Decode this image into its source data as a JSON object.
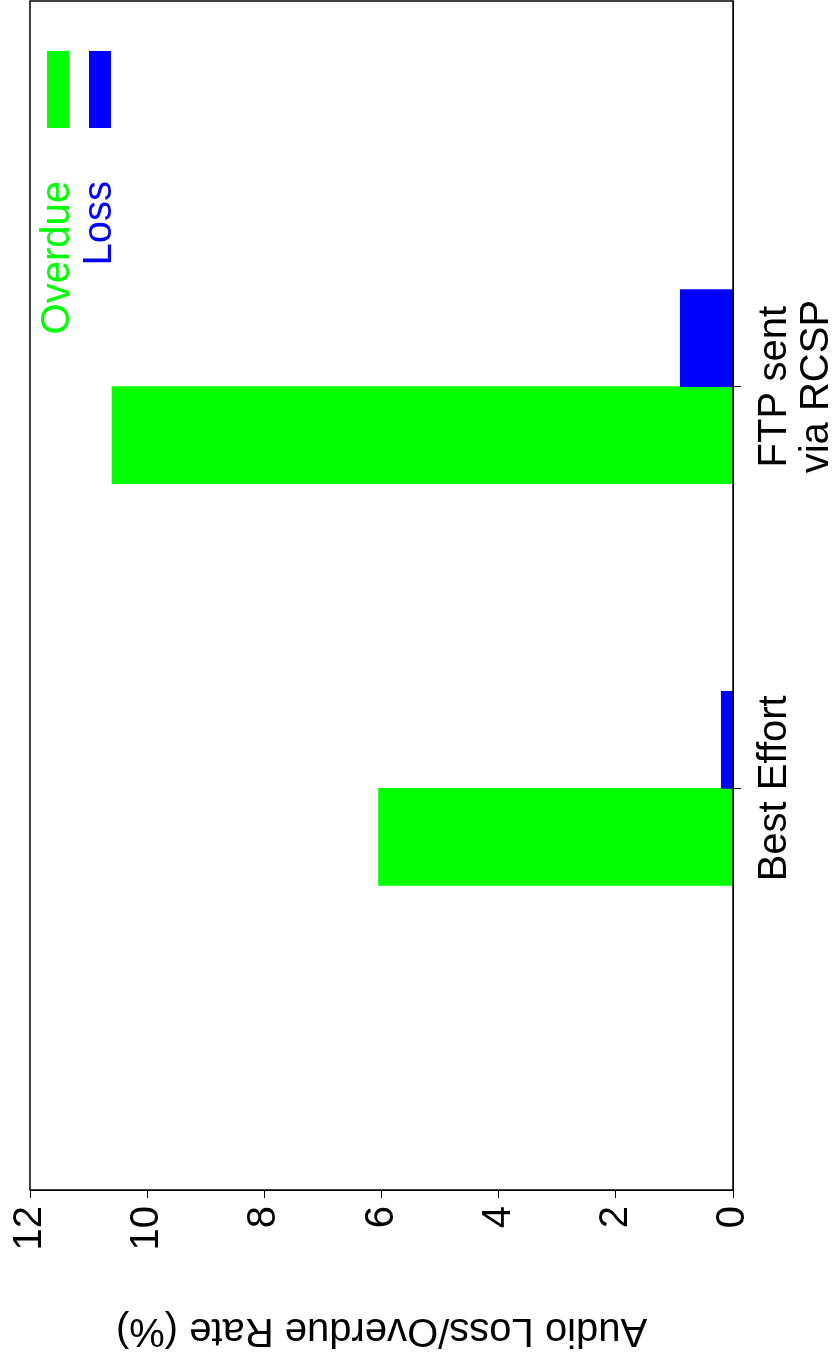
{
  "chart_data": {
    "type": "bar",
    "orientation": "horizontal",
    "xlabel": "Audio Loss/Overdue Rate (%)",
    "categories": [
      "FTP sent\nvia RCSP",
      "Best Effort"
    ],
    "series": [
      {
        "name": "Overdue",
        "color": "#00ff00",
        "values": [
          10.6,
          6.05
        ]
      },
      {
        "name": "Loss",
        "color": "#0000ff",
        "values": [
          0.9,
          0.2
        ]
      }
    ],
    "xlim": [
      12,
      0
    ],
    "xticks": [
      0,
      2,
      4,
      6,
      8,
      10,
      12
    ],
    "legend": "top left",
    "grid": false
  }
}
